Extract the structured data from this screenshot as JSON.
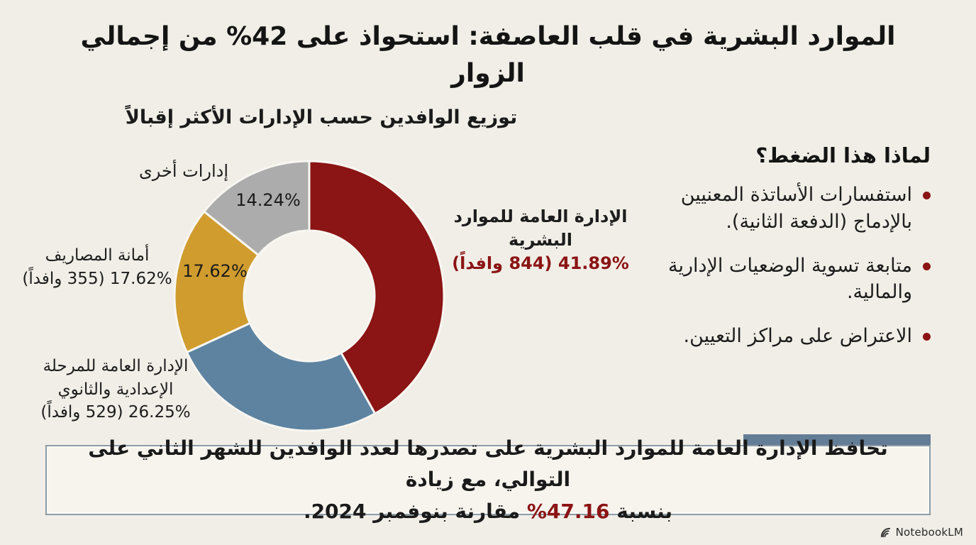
{
  "page": {
    "title": "الموارد البشرية في قلب العاصفة: استحواذ على 42% من إجمالي الزوار"
  },
  "chart_data": {
    "type": "pie",
    "subtype": "donut",
    "title": "توزيع الوافدين حسب الإدارات الأكثر إقبالاً",
    "start_angle_deg": 0,
    "direction": "clockwise",
    "segments": [
      {
        "name": "الإدارة العامة للموارد البشرية",
        "value_pct": 41.89,
        "count": 844,
        "value_label": "41.89% (844 وافداً)",
        "color": "#8B1414"
      },
      {
        "name": "الإدارة العامة للمرحلة الإعدادية والثانوي",
        "value_pct": 26.25,
        "count": 529,
        "value_label": "26.25% (529 وافداً)",
        "color": "#5D83A1"
      },
      {
        "name": "أمانة المصاريف",
        "value_pct": 17.62,
        "count": 355,
        "value_label": "17.62% (355 وافداً)",
        "inner_label": "17.62%",
        "color": "#D09C2E"
      },
      {
        "name": "إدارات أخرى",
        "value_pct": 14.24,
        "inner_label": "14.24%",
        "color": "#ACACAC"
      }
    ],
    "hole_color": "#F5F2EB",
    "separator_color": "#F8F6F1"
  },
  "why_panel": {
    "heading": "لماذا هذا الضغط؟",
    "bullet_color": "#8B1414",
    "bullets": [
      "استفسارات الأساتذة المعنيين بالإدماج (الدفعة الثانية).",
      "متابعة تسوية الوضعيات الإدارية والمالية.",
      "الاعتراض على مراكز التعيين."
    ]
  },
  "footer_box": {
    "line1": "تحافظ الإدارة العامة للموارد البشرية على تصدرها لعدد الوافدين للشهر الثاني على التوالي، مع زيادة",
    "line2_prefix": "بنسبة ",
    "line2_highlight": "47.16%",
    "line2_suffix": " مقارنة بنوفمبر 2024.",
    "highlight_color": "#8B1414",
    "accent_color": "#647D96"
  },
  "watermark": {
    "label": "NotebookLM"
  },
  "colors": {
    "background": "#F1EEE7",
    "text": "#1b1b1b",
    "box_border": "#8D9CA7",
    "box_background": "#F7F4EE"
  }
}
